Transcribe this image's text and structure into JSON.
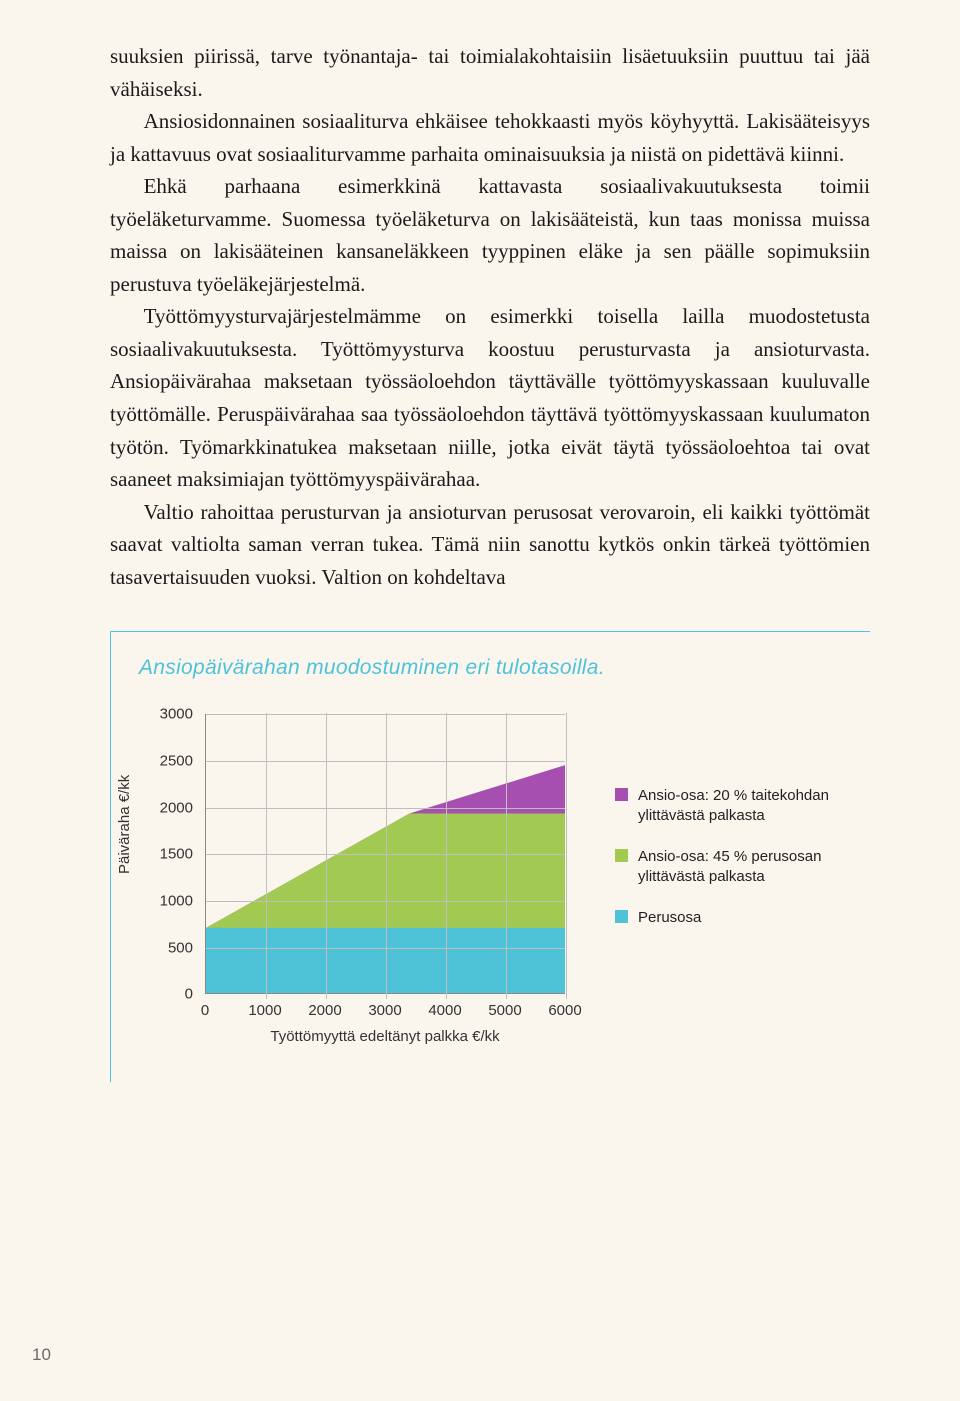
{
  "paragraphs": {
    "p1": "suuksien piirissä, tarve työnantaja- tai toimialakohtaisiin lisäetuuksiin puuttuu tai jää vähäiseksi.",
    "p2": "Ansiosidonnainen sosiaaliturva ehkäisee tehokkaasti myös köyhyyttä. Lakisääteisyys ja kattavuus ovat sosiaaliturvamme parhaita ominaisuuksia ja niistä on pidettävä kiinni.",
    "p3": "Ehkä parhaana esimerkkinä kattavasta sosiaalivakuutuksesta toimii työeläketurvamme. Suomessa työeläketurva on lakisääteistä, kun taas monissa muissa maissa on lakisääteinen kansaneläkkeen tyyppinen eläke ja sen päälle sopimuksiin perustuva työeläkejärjestelmä.",
    "p4": "Työttömyysturvajärjestelmämme on esimerkki toisella lailla muodostetusta sosiaalivakuutuksesta. Työttömyysturva koostuu perusturvasta ja ansioturvasta. Ansiopäivärahaa maksetaan työssäoloehdon täyttävälle työttömyyskassaan kuuluvalle työttömälle. Peruspäivärahaa saa työssäoloehdon täyttävä työttömyyskassaan kuulumaton työtön. Työmarkkinatukea maksetaan niille, jotka eivät täytä työssäoloehtoa tai ovat saaneet maksimiajan työttömyyspäivärahaa.",
    "p5": "Valtio rahoittaa perusturvan ja ansioturvan perusosat verovaroin, eli kaikki työttömät saavat valtiolta saman verran tukea. Tämä niin sanottu kytkös onkin tärkeä työttömien tasavertaisuuden vuoksi. Valtion on kohdeltava"
  },
  "chart": {
    "title": "Ansiopäivärahan muodostuminen eri tulotasoilla.",
    "y_label": "Päiväraha €/kk",
    "x_label": "Työttömyyttä edeltänyt palkka €/kk",
    "y_ticks": [
      "0",
      "500",
      "1000",
      "1500",
      "2000",
      "2500",
      "3000"
    ],
    "x_ticks": [
      "0",
      "1000",
      "2000",
      "3000",
      "4000",
      "5000",
      "6000"
    ],
    "y_max": 3000,
    "x_max": 6000,
    "series_perusosa": {
      "color": "#4ec3d8",
      "points": [
        [
          0,
          700
        ],
        [
          6000,
          700
        ]
      ]
    },
    "series_45": {
      "color": "#a2c952",
      "points": [
        [
          0,
          700
        ],
        [
          3400,
          1930
        ],
        [
          6000,
          1930
        ]
      ]
    },
    "series_20": {
      "color": "#a64fb0",
      "points": [
        [
          0,
          700
        ],
        [
          3400,
          1930
        ],
        [
          6000,
          2450
        ]
      ]
    },
    "legend": [
      {
        "color": "#a64fb0",
        "label": "Ansio-osa: 20 % taitekohdan ylittävästä palkasta"
      },
      {
        "color": "#a2c952",
        "label": "Ansio-osa: 45 % perusosan ylittävästä palkasta"
      },
      {
        "color": "#4ec3d8",
        "label": "Perusosa"
      }
    ]
  },
  "page_number": "10"
}
